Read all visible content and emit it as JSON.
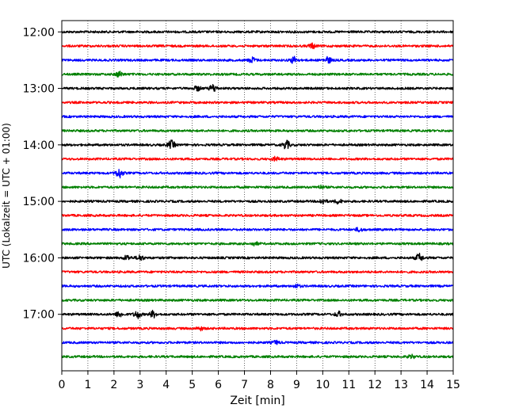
{
  "chart_data": {
    "type": "line",
    "title": "",
    "xlabel": "Zeit  [min]",
    "ylabel": "UTC (Lokalzeit = UTC + 01:00)",
    "xlim": [
      0,
      15
    ],
    "x_ticks": [
      0,
      1,
      2,
      3,
      4,
      5,
      6,
      7,
      8,
      9,
      10,
      11,
      12,
      13,
      14,
      15
    ],
    "y_ticks": [
      "12:00",
      "13:00",
      "14:00",
      "15:00",
      "16:00",
      "17:00"
    ],
    "y_range_utc": [
      "11:48",
      "18:00"
    ],
    "grid": "vertical dotted lines at each minute",
    "trace_interval_min": 15,
    "color_cycle": [
      "#000000",
      "#ff0000",
      "#0000ff",
      "#008000"
    ],
    "traces": [
      {
        "start": "12:00",
        "color": "#000000",
        "events": []
      },
      {
        "start": "12:15",
        "color": "#ff0000",
        "events": [
          {
            "t": 9.6,
            "amp": 0.9
          }
        ]
      },
      {
        "start": "12:30",
        "color": "#0000ff",
        "events": [
          {
            "t": 7.3,
            "amp": 1.0
          },
          {
            "t": 8.9,
            "amp": 1.3
          },
          {
            "t": 10.2,
            "amp": 1.1
          }
        ]
      },
      {
        "start": "12:45",
        "color": "#008000",
        "events": [
          {
            "t": 2.2,
            "amp": 1.0
          }
        ]
      },
      {
        "start": "13:00",
        "color": "#000000",
        "events": [
          {
            "t": 5.2,
            "amp": 0.8
          },
          {
            "t": 5.8,
            "amp": 1.4
          }
        ]
      },
      {
        "start": "13:15",
        "color": "#ff0000",
        "events": []
      },
      {
        "start": "13:30",
        "color": "#0000ff",
        "events": []
      },
      {
        "start": "13:45",
        "color": "#008000",
        "events": []
      },
      {
        "start": "14:00",
        "color": "#000000",
        "events": [
          {
            "t": 4.2,
            "amp": 1.5
          },
          {
            "t": 8.6,
            "amp": 1.6
          }
        ]
      },
      {
        "start": "14:15",
        "color": "#ff0000",
        "events": [
          {
            "t": 8.2,
            "amp": 0.7
          }
        ]
      },
      {
        "start": "14:30",
        "color": "#0000ff",
        "events": [
          {
            "t": 2.2,
            "amp": 1.8
          }
        ]
      },
      {
        "start": "14:45",
        "color": "#008000",
        "events": [
          {
            "t": 9.9,
            "amp": 0.6
          }
        ]
      },
      {
        "start": "15:00",
        "color": "#000000",
        "events": [
          {
            "t": 10.0,
            "amp": 1.0
          },
          {
            "t": 10.6,
            "amp": 0.8
          }
        ]
      },
      {
        "start": "15:15",
        "color": "#ff0000",
        "events": []
      },
      {
        "start": "15:30",
        "color": "#0000ff",
        "events": [
          {
            "t": 11.4,
            "amp": 0.7
          }
        ]
      },
      {
        "start": "15:45",
        "color": "#008000",
        "events": [
          {
            "t": 7.4,
            "amp": 0.6
          }
        ]
      },
      {
        "start": "16:00",
        "color": "#000000",
        "events": [
          {
            "t": 2.5,
            "amp": 0.9
          },
          {
            "t": 3.0,
            "amp": 1.0
          },
          {
            "t": 13.7,
            "amp": 1.5
          }
        ]
      },
      {
        "start": "16:15",
        "color": "#ff0000",
        "events": []
      },
      {
        "start": "16:30",
        "color": "#0000ff",
        "events": [
          {
            "t": 9.0,
            "amp": 0.6
          }
        ]
      },
      {
        "start": "16:45",
        "color": "#008000",
        "events": []
      },
      {
        "start": "17:00",
        "color": "#000000",
        "events": [
          {
            "t": 2.2,
            "amp": 1.0
          },
          {
            "t": 2.9,
            "amp": 1.4
          },
          {
            "t": 3.5,
            "amp": 1.2
          },
          {
            "t": 10.6,
            "amp": 0.9
          }
        ]
      },
      {
        "start": "17:15",
        "color": "#ff0000",
        "events": [
          {
            "t": 5.3,
            "amp": 0.6
          }
        ]
      },
      {
        "start": "17:30",
        "color": "#0000ff",
        "events": [
          {
            "t": 8.2,
            "amp": 0.6
          }
        ]
      },
      {
        "start": "17:45",
        "color": "#008000",
        "events": [
          {
            "t": 13.4,
            "amp": 0.6
          }
        ]
      }
    ]
  }
}
